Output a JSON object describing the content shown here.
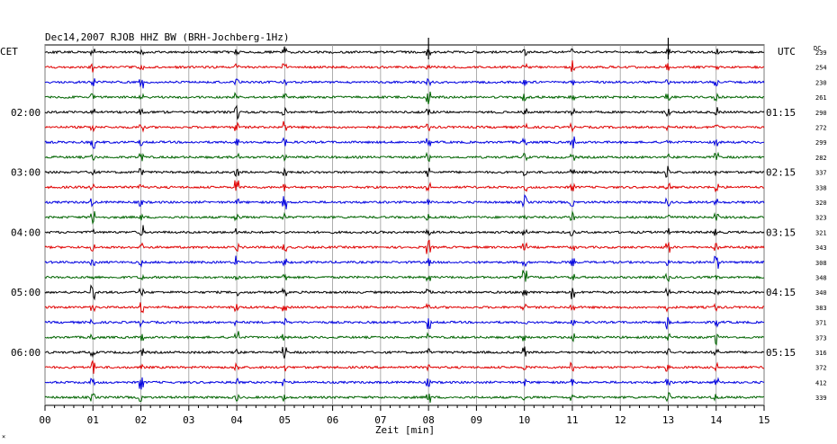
{
  "chart_data": {
    "type": "line",
    "title": "Dec14,2007   RJOB HHZ BW (BRH-Jochberg-1Hz)",
    "left_timezone": "CET",
    "right_timezone": "UTC",
    "dc_header": "DC",
    "xlabel": "Zeit [min]",
    "xlim": [
      0,
      15
    ],
    "x_ticks": [
      "00",
      "01",
      "02",
      "03",
      "04",
      "05",
      "06",
      "07",
      "08",
      "09",
      "10",
      "11",
      "12",
      "13",
      "14",
      "15"
    ],
    "grid": true,
    "trace_colors": [
      "#000000",
      "#e00000",
      "#0000e0",
      "#006400"
    ],
    "left_hour_labels": [
      {
        "row": 4,
        "label": "02:00"
      },
      {
        "row": 8,
        "label": "03:00"
      },
      {
        "row": 12,
        "label": "04:00"
      },
      {
        "row": 16,
        "label": "05:00"
      },
      {
        "row": 20,
        "label": "06:00"
      }
    ],
    "right_hour_labels": [
      {
        "row": 4,
        "label": "01:15"
      },
      {
        "row": 8,
        "label": "02:15"
      },
      {
        "row": 12,
        "label": "03:15"
      },
      {
        "row": 16,
        "label": "04:15"
      },
      {
        "row": 20,
        "label": "05:15"
      }
    ],
    "dc_values": [
      "239",
      "254",
      "230",
      "261",
      "290",
      "272",
      "299",
      "282",
      "337",
      "338",
      "320",
      "323",
      "321",
      "343",
      "308",
      "348",
      "340",
      "383",
      "371",
      "373",
      "316",
      "372",
      "412",
      "339"
    ],
    "spike_minutes": [
      1,
      2,
      4,
      5,
      8,
      10,
      11,
      13,
      14
    ],
    "footer_mark": "×"
  }
}
